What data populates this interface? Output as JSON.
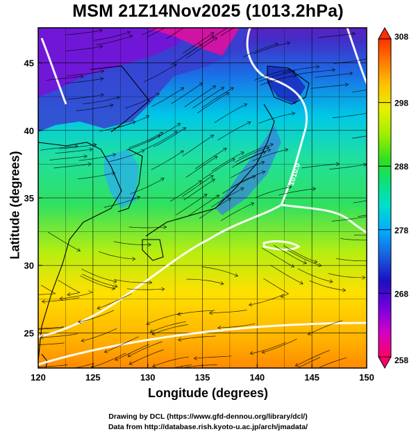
{
  "title": "MSM 21Z14Nov2025 (1013.2hPa)",
  "chart_data": {
    "type": "heatmap",
    "title": "MSM 21Z14Nov2025 (1013.2hPa)",
    "xlabel": "Longitude (degrees)",
    "ylabel": "Latitude  (degrees)",
    "xlim": [
      120,
      150
    ],
    "ylim": [
      22.4,
      47.6
    ],
    "x_ticks": [
      "120",
      "125",
      "130",
      "135",
      "140",
      "145",
      "150"
    ],
    "y_ticks": [
      "25",
      "30",
      "35",
      "40",
      "45"
    ],
    "grid": true,
    "contour_label": "1010.0",
    "colorbar": {
      "min": 258,
      "max": 308,
      "ticks": [
        "308",
        "298",
        "288",
        "278",
        "268",
        "258"
      ],
      "colors": [
        "#ff0066",
        "#cc00cc",
        "#7a00e6",
        "#1a1acc",
        "#1a66e6",
        "#00aaff",
        "#00e0e0",
        "#00e68c",
        "#33e633",
        "#99ee00",
        "#e6f000",
        "#ffcc00",
        "#ff9900",
        "#ff6a00",
        "#ff3300"
      ]
    }
  },
  "credits": {
    "line1": "Drawing by DCL (https://www.gfd-dennou.org/library/dcl/)",
    "line2": "Data from http://database.rish.kyoto-u.ac.jp/arch/jmadata/"
  },
  "colors": {
    "land_cold": "#5533cc",
    "sea_warm": "#ffaa00",
    "isobar": "#ffffff",
    "coast": "#000000"
  }
}
